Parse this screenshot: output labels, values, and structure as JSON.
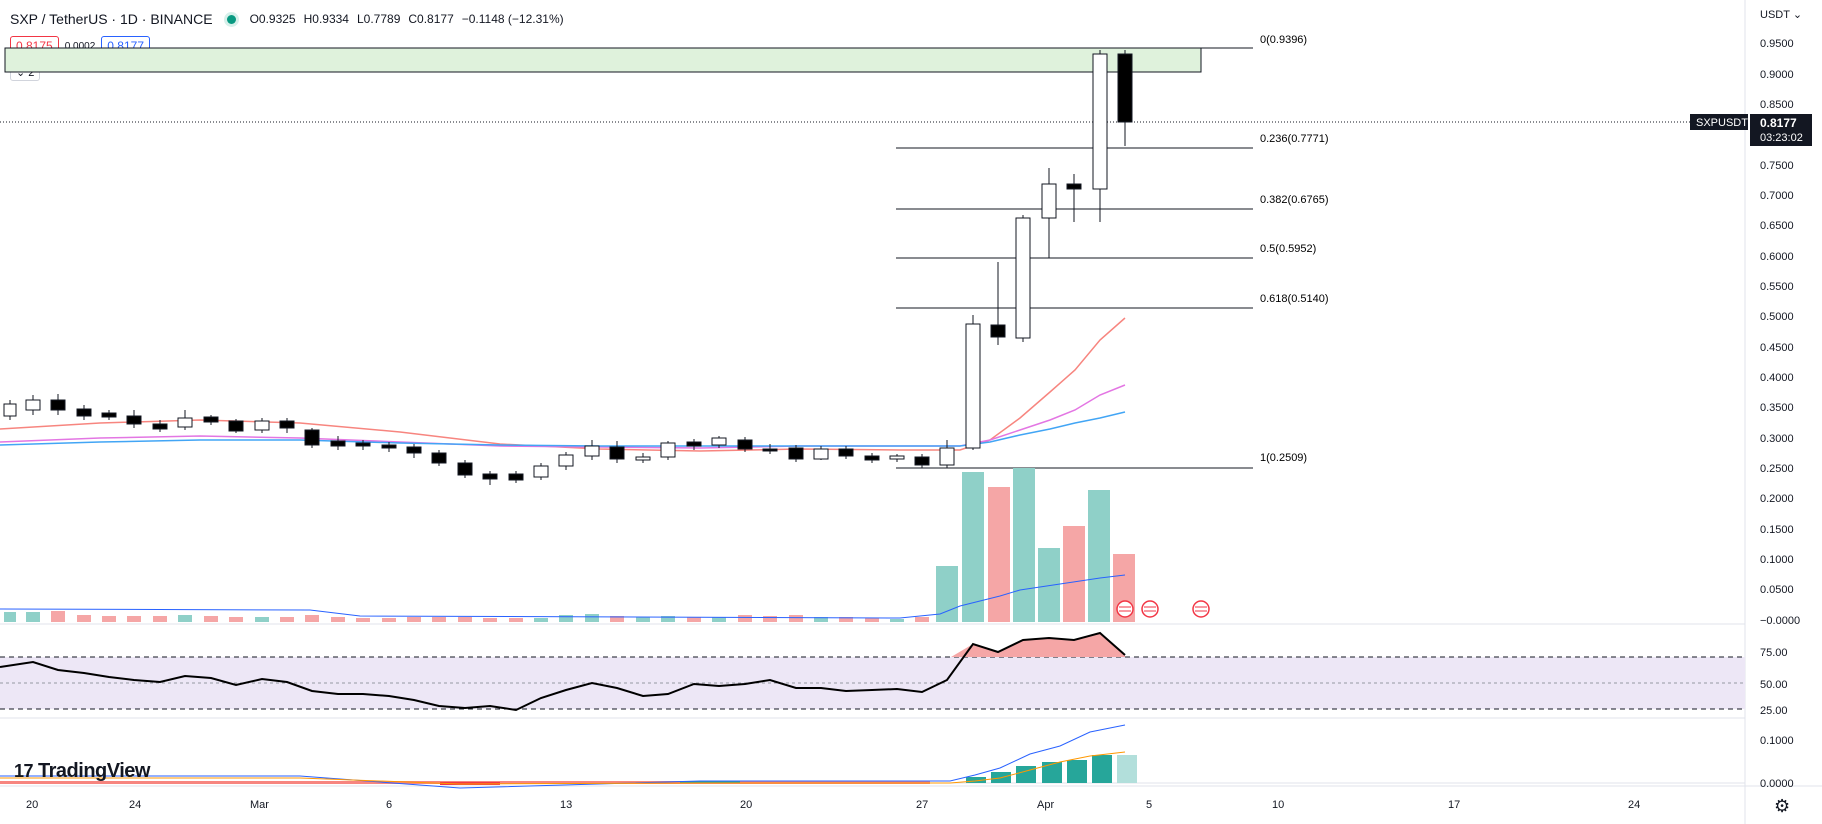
{
  "header": {
    "symbol": "SXP / TetherUS · 1D · BINANCE",
    "open": "O0.9325",
    "high": "H0.9334",
    "low": "L0.7789",
    "close": "C0.8177",
    "change": "−0.1148 (−12.31%)"
  },
  "prices": {
    "bid": "0.8175",
    "spread": "0.0002",
    "ask": "0.8177"
  },
  "collapse_label": "2",
  "currency": "USDT",
  "price_axis": [
    "0.9500",
    "0.9000",
    "0.8500",
    "0.7500",
    "0.7000",
    "0.6500",
    "0.6000",
    "0.5500",
    "0.5000",
    "0.4500",
    "0.4000",
    "0.3500",
    "0.3000",
    "0.2500",
    "0.2000",
    "0.1500",
    "0.1000",
    "0.0500",
    "−0.0000"
  ],
  "last_price": {
    "symbol": "SXPUSDT",
    "value": "0.8177",
    "countdown": "03:23:02"
  },
  "fib_levels": [
    "0(0.9396)",
    "0.236(0.7771)",
    "0.382(0.6765)",
    "0.5(0.5952)",
    "0.618(0.5140)",
    "1(0.2509)"
  ],
  "rsi_axis": [
    "75.00",
    "50.00",
    "25.00"
  ],
  "macd_axis": [
    "0.1000",
    "0.0000"
  ],
  "time_axis": [
    "20",
    "24",
    "Mar",
    "6",
    "13",
    "20",
    "27",
    "Apr",
    "5",
    "10",
    "17",
    "24"
  ],
  "logo": "TradingView",
  "colors": {
    "up": "#ffffff",
    "down": "#000000",
    "vol_up": "#8fd0c8",
    "vol_down": "#f5a6a6",
    "accent": "#2962ff"
  }
}
